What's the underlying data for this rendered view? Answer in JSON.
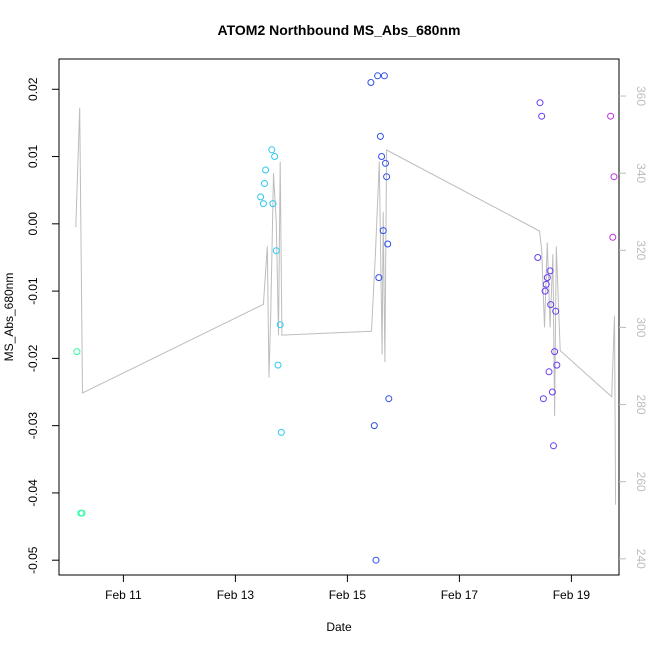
{
  "chart_data": {
    "type": "scatter",
    "title": "ATOM2 Northbound MS_Abs_680nm",
    "xlabel": "Date",
    "ylabel": "MS_Abs_680nm",
    "x_unit": "days (Feb)",
    "xlim": [
      9.85,
      19.85
    ],
    "ylim": [
      -0.0522,
      0.0245
    ],
    "xticks": [
      {
        "value": 11,
        "label": "Feb 11"
      },
      {
        "value": 13,
        "label": "Feb 13"
      },
      {
        "value": 15,
        "label": "Feb 15"
      },
      {
        "value": 17,
        "label": "Feb 17"
      },
      {
        "value": 19,
        "label": "Feb 19"
      }
    ],
    "yticks": [
      {
        "value": 0.02,
        "label": "0.02"
      },
      {
        "value": 0.01,
        "label": "0.01"
      },
      {
        "value": 0.0,
        "label": "0.00"
      },
      {
        "value": -0.01,
        "label": "-0.01"
      },
      {
        "value": -0.02,
        "label": "-0.02"
      },
      {
        "value": -0.03,
        "label": "-0.03"
      },
      {
        "value": -0.04,
        "label": "-0.04"
      },
      {
        "value": -0.05,
        "label": "-0.05"
      }
    ],
    "y2lim": [
      235.8,
      369.6
    ],
    "y2ticks": [
      {
        "value": 240,
        "label": "240"
      },
      {
        "value": 260,
        "label": "260"
      },
      {
        "value": 280,
        "label": "280"
      },
      {
        "value": 300,
        "label": "300"
      },
      {
        "value": 320,
        "label": "320"
      },
      {
        "value": 340,
        "label": "340"
      },
      {
        "value": 360,
        "label": "360"
      }
    ],
    "grid": false,
    "legend": "none",
    "secondary_line": {
      "color": "#bdbdbd",
      "points": [
        [
          10.15,
          326
        ],
        [
          10.22,
          357
        ],
        [
          10.27,
          283
        ],
        [
          13.5,
          306
        ],
        [
          13.57,
          321
        ],
        [
          13.6,
          287
        ],
        [
          13.63,
          303
        ],
        [
          13.68,
          340
        ],
        [
          13.73,
          327
        ],
        [
          13.77,
          298
        ],
        [
          13.8,
          343
        ],
        [
          13.83,
          298
        ],
        [
          15.43,
          299
        ],
        [
          15.5,
          319
        ],
        [
          15.57,
          343
        ],
        [
          15.62,
          293
        ],
        [
          15.64,
          330
        ],
        [
          15.67,
          291
        ],
        [
          15.7,
          346
        ],
        [
          18.43,
          325
        ],
        [
          18.47,
          320
        ],
        [
          18.52,
          300
        ],
        [
          18.57,
          322
        ],
        [
          18.62,
          300
        ],
        [
          18.67,
          319
        ],
        [
          18.7,
          277
        ],
        [
          18.73,
          321
        ],
        [
          18.8,
          294
        ],
        [
          19.72,
          282
        ],
        [
          19.77,
          303
        ],
        [
          19.79,
          254
        ]
      ]
    },
    "series": [
      {
        "color": "#2effa6",
        "points": [
          [
            10.17,
            -0.019
          ],
          [
            10.24,
            -0.043
          ],
          [
            10.26,
            -0.043
          ]
        ]
      },
      {
        "color": "#2ec9ef",
        "points": [
          [
            13.45,
            0.004
          ],
          [
            13.5,
            0.003
          ],
          [
            13.52,
            0.006
          ],
          [
            13.54,
            0.008
          ],
          [
            13.65,
            0.011
          ],
          [
            13.67,
            0.003
          ],
          [
            13.7,
            0.01
          ],
          [
            13.73,
            -0.004
          ],
          [
            13.76,
            -0.021
          ],
          [
            13.8,
            -0.015
          ],
          [
            13.82,
            -0.031
          ]
        ]
      },
      {
        "color": "#3050e8",
        "points": [
          [
            15.42,
            0.021
          ],
          [
            15.48,
            -0.03
          ],
          [
            15.51,
            -0.05
          ],
          [
            15.54,
            0.022
          ],
          [
            15.56,
            -0.008
          ],
          [
            15.59,
            0.013
          ],
          [
            15.61,
            0.01
          ],
          [
            15.64,
            -0.001
          ],
          [
            15.66,
            0.022
          ],
          [
            15.68,
            0.009
          ],
          [
            15.7,
            0.007
          ],
          [
            15.72,
            -0.003
          ],
          [
            15.74,
            -0.026
          ]
        ]
      },
      {
        "color": "#6a3cf0",
        "points": [
          [
            18.4,
            -0.005
          ],
          [
            18.44,
            0.018
          ],
          [
            18.47,
            0.016
          ],
          [
            18.5,
            -0.026
          ],
          [
            18.53,
            -0.01
          ],
          [
            18.55,
            -0.009
          ],
          [
            18.57,
            -0.008
          ],
          [
            18.6,
            -0.022
          ],
          [
            18.62,
            -0.007
          ],
          [
            18.63,
            -0.012
          ],
          [
            18.66,
            -0.025
          ],
          [
            18.68,
            -0.033
          ],
          [
            18.7,
            -0.019
          ],
          [
            18.72,
            -0.013
          ],
          [
            18.74,
            -0.021
          ]
        ]
      },
      {
        "color": "#c02ee0",
        "points": [
          [
            19.7,
            0.016
          ],
          [
            19.74,
            -0.002
          ],
          [
            19.76,
            0.007
          ]
        ]
      }
    ]
  }
}
